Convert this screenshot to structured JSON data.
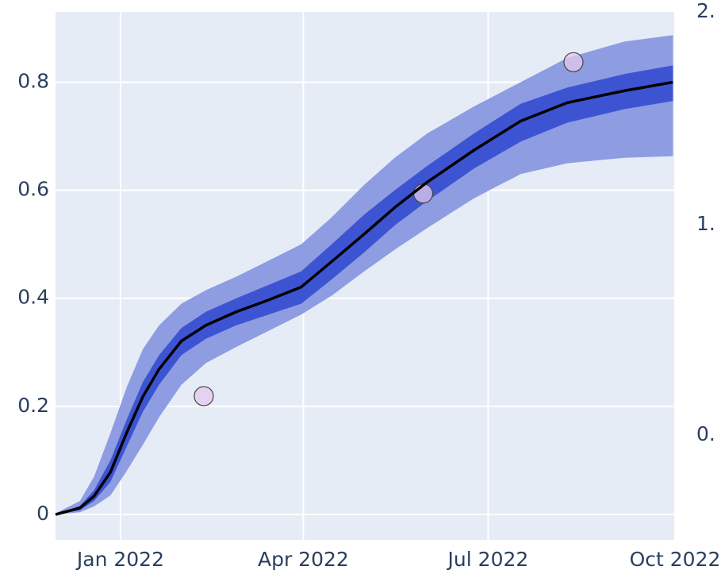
{
  "chart_data": {
    "type": "line",
    "x": [
      "2021-11-30",
      "2021-12-12",
      "2021-12-19",
      "2021-12-27",
      "2022-01-04",
      "2022-01-12",
      "2022-01-20",
      "2022-01-31",
      "2022-02-12",
      "2022-02-27",
      "2022-03-15",
      "2022-03-31",
      "2022-04-15",
      "2022-05-01",
      "2022-05-16",
      "2022-06-01",
      "2022-06-24",
      "2022-07-17",
      "2022-08-09",
      "2022-09-06",
      "2022-09-30"
    ],
    "bands": [
      {
        "color": "#8e9ce2",
        "lower": [
          0,
          0.004,
          0.015,
          0.035,
          0.08,
          0.129,
          0.18,
          0.24,
          0.28,
          0.31,
          0.34,
          0.37,
          0.405,
          0.45,
          0.49,
          0.53,
          0.585,
          0.63,
          0.65,
          0.66,
          0.663
        ],
        "upper": [
          0.002,
          0.025,
          0.07,
          0.15,
          0.235,
          0.306,
          0.35,
          0.39,
          0.415,
          0.44,
          0.47,
          0.5,
          0.55,
          0.61,
          0.66,
          0.705,
          0.755,
          0.8,
          0.845,
          0.875,
          0.887
        ]
      },
      {
        "color": "#3d54d2",
        "lower": [
          0,
          0.008,
          0.025,
          0.06,
          0.125,
          0.19,
          0.24,
          0.295,
          0.325,
          0.35,
          0.37,
          0.39,
          0.435,
          0.485,
          0.535,
          0.58,
          0.64,
          0.69,
          0.725,
          0.75,
          0.765
        ],
        "upper": [
          0,
          0.016,
          0.045,
          0.1,
          0.175,
          0.245,
          0.295,
          0.345,
          0.375,
          0.4,
          0.425,
          0.45,
          0.5,
          0.555,
          0.6,
          0.645,
          0.705,
          0.76,
          0.79,
          0.815,
          0.831
        ]
      }
    ],
    "series": [
      {
        "color": "#000000",
        "values": [
          0,
          0.012,
          0.034,
          0.078,
          0.151,
          0.218,
          0.269,
          0.321,
          0.35,
          0.375,
          0.397,
          0.421,
          0.468,
          0.519,
          0.568,
          0.615,
          0.674,
          0.728,
          0.762,
          0.784,
          0.8
        ]
      }
    ],
    "points": {
      "color": "#e4c9ee",
      "x": [
        "2022-02-11",
        "2022-05-30",
        "2022-08-12"
      ],
      "values": [
        0.219,
        0.594,
        0.837
      ]
    },
    "xlim": [
      "2021-11-30",
      "2022-10-01"
    ],
    "ylim": [
      -0.047,
      0.93
    ],
    "xticks": [
      {
        "value": "2022-01-01",
        "label": "Jan 2022"
      },
      {
        "value": "2022-04-01",
        "label": "Apr 2022"
      },
      {
        "value": "2022-07-01",
        "label": "Jul 2022"
      },
      {
        "value": "2022-10-01",
        "label": "Oct 2022"
      }
    ],
    "yticks": [
      0,
      0.2,
      0.4,
      0.6,
      0.8
    ],
    "grid": true,
    "right_axis_labels": [
      "2.",
      "1.",
      "0."
    ]
  }
}
